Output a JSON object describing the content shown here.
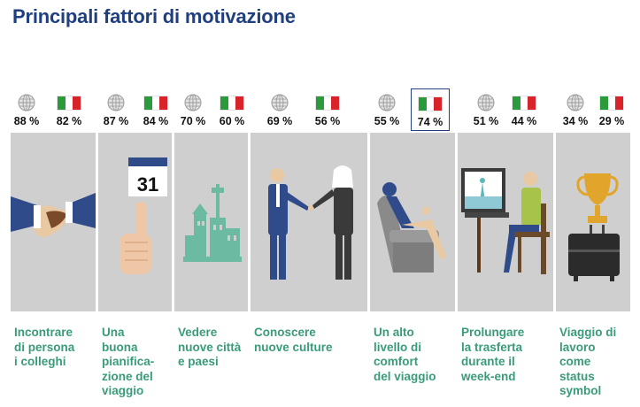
{
  "page_title": "Principali fattori di motivazione",
  "icons": {
    "global": "globe-icon",
    "italy": "italian-flag-icon"
  },
  "colors": {
    "title": "#1f3f7f",
    "label": "#3a9b7a",
    "panel": "#cfcfcf",
    "flag_green": "#2a9a3a",
    "flag_white": "#ffffff",
    "flag_red": "#d8232a"
  },
  "chart_data": {
    "type": "table",
    "title": "Principali fattori di motivazione",
    "series": [
      {
        "name": "",
        "values": [
          88,
          87,
          70,
          69,
          55,
          51,
          34
        ]
      },
      {
        "name": "",
        "values": [
          82,
          84,
          60,
          56,
          74,
          44,
          29
        ]
      }
    ],
    "highlighted": {
      "series": 1,
      "category": 4
    },
    "categories": [
      "Incontrare di persona i colleghi",
      "Una buona pianificazione del viaggio",
      "Vedere nuove città e paesi",
      "Conoscere nuove culture",
      "Un alto livello di comfort del viaggio",
      "Prolungare la trasferta durante il week-end",
      "Viaggio di lavoro come status symbol"
    ],
    "display": {
      "global": [
        "88 %",
        "87 %",
        "70 %",
        "69 %",
        "55 %",
        "51 %",
        "34 %"
      ],
      "italy": [
        "82 %",
        "84 %",
        "60 %",
        "56 %",
        "74 %",
        "44 %",
        "29 %"
      ],
      "labels": [
        "Incontrare\ndi persona\ni colleghi",
        "Una\nbuona\npianifica-\nzione del\nviaggio",
        "Vedere\nnuove città\ne paesi",
        "Conoscere\nnuove culture",
        "Un alto\nlivello di\ncomfort\ndel viaggio",
        "Prolungare\nla trasferta\ndurante il\nweek-end",
        "Viaggio di\nlavoro\ncome\nstatus\nsymbol"
      ]
    },
    "calendar_number": "31"
  }
}
